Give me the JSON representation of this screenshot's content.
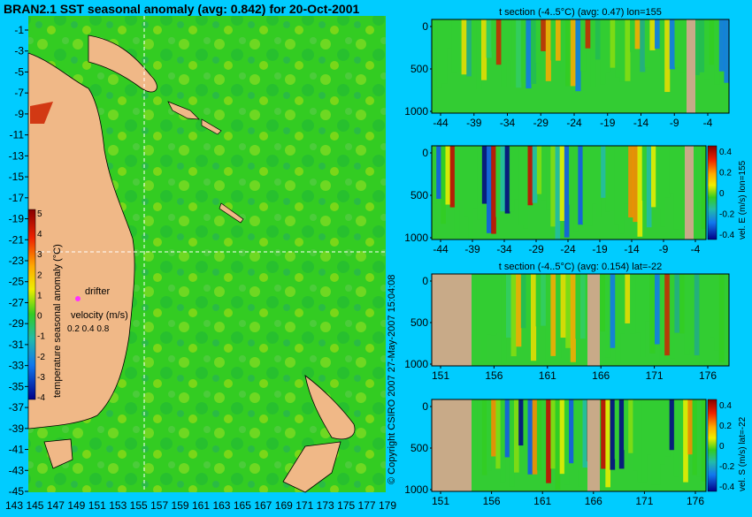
{
  "background_color": "#00ccff",
  "map": {
    "title": "BRAN2.1 SST seasonal anomaly (avg: 0.842) for 20-Oct-2001",
    "lat_ticks": [
      "-1",
      "-3",
      "-5",
      "-7",
      "-9",
      "-11",
      "-13",
      "-15",
      "-17",
      "-19",
      "-21",
      "-23",
      "-25",
      "-27",
      "-29",
      "-31",
      "-33",
      "-35",
      "-37",
      "-39",
      "-41",
      "-43",
      "-45"
    ],
    "lon_ticks": [
      "143",
      "145",
      "147",
      "149",
      "151",
      "153",
      "155",
      "157",
      "159",
      "161",
      "163",
      "165",
      "167",
      "169",
      "171",
      "173",
      "175",
      "177",
      "179"
    ],
    "colorbar_label": "temperature seasonal anomaly (°C)",
    "colorbar_ticks": [
      "5",
      "4",
      "3",
      "2",
      "1",
      "0",
      "-1",
      "-2",
      "-3",
      "-4"
    ],
    "drifter_label": "drifter",
    "velocity_label": "velocity (m/s)",
    "velocity_scale": "0.2 0.4 0.8",
    "crosshair_lon": 155,
    "crosshair_lat": -22
  },
  "copyright": "© Copyright CSIRO 2007   27-May-2007 15:04:08",
  "panels": {
    "p1": {
      "title": "t section (-4..5°C) (avg: 0.47) lon=155",
      "x_ticks": [
        "-44",
        "-39",
        "-34",
        "-29",
        "-24",
        "-19",
        "-14",
        "-9",
        "-4"
      ],
      "y_ticks": [
        "0",
        "500",
        "1000"
      ]
    },
    "p2": {
      "title": "",
      "x_ticks": [
        "-44",
        "-39",
        "-34",
        "-29",
        "-24",
        "-19",
        "-14",
        "-9",
        "-4"
      ],
      "y_ticks": [
        "0",
        "500",
        "1000"
      ],
      "colorbar_label": "vel. E (m/s) lon=155",
      "colorbar_ticks": [
        "0.4",
        "0.2",
        "0",
        "-0.2",
        "-0.4"
      ]
    },
    "p3": {
      "title": "t section (-4..5°C) (avg: 0.154) lat=-22",
      "x_ticks": [
        "151",
        "156",
        "161",
        "166",
        "171",
        "176"
      ],
      "y_ticks": [
        "0",
        "500",
        "1000"
      ]
    },
    "p4": {
      "title": "",
      "x_ticks": [
        "151",
        "156",
        "161",
        "166",
        "171",
        "176"
      ],
      "y_ticks": [
        "0",
        "500",
        "1000"
      ],
      "colorbar_label": "vel. S (m/s) lat=-22",
      "colorbar_ticks": [
        "0.4",
        "0.2",
        "0",
        "-0.2",
        "-0.4"
      ]
    }
  },
  "chart_data": [
    {
      "type": "heatmap",
      "title": "BRAN2.1 SST seasonal anomaly (avg: 0.842) for 20-Oct-2001",
      "x_range": [
        143,
        180
      ],
      "y_range": [
        -45,
        0
      ],
      "value_range": [
        -4,
        5
      ],
      "colorbar_label": "temperature seasonal anomaly (°C)"
    },
    {
      "type": "heatmap",
      "title": "t section (-4..5°C) (avg: 0.47) lon=155",
      "x_range": [
        -45,
        -1
      ],
      "y_range": [
        1050,
        0
      ],
      "value_range": [
        -4,
        5
      ]
    },
    {
      "type": "heatmap",
      "title": "",
      "x_range": [
        -45,
        -1
      ],
      "y_range": [
        1050,
        0
      ],
      "value_range": [
        -0.4,
        0.4
      ],
      "colorbar_label": "vel. E (m/s) lon=155"
    },
    {
      "type": "heatmap",
      "title": "t section (-4..5°C) (avg: 0.154) lat=-22",
      "x_range": [
        150,
        180
      ],
      "y_range": [
        1050,
        0
      ],
      "value_range": [
        -4,
        5
      ]
    },
    {
      "type": "heatmap",
      "title": "",
      "x_range": [
        150,
        180
      ],
      "y_range": [
        1050,
        0
      ],
      "value_range": [
        -0.4,
        0.4
      ],
      "colorbar_label": "vel. S (m/s) lat=-22"
    }
  ]
}
